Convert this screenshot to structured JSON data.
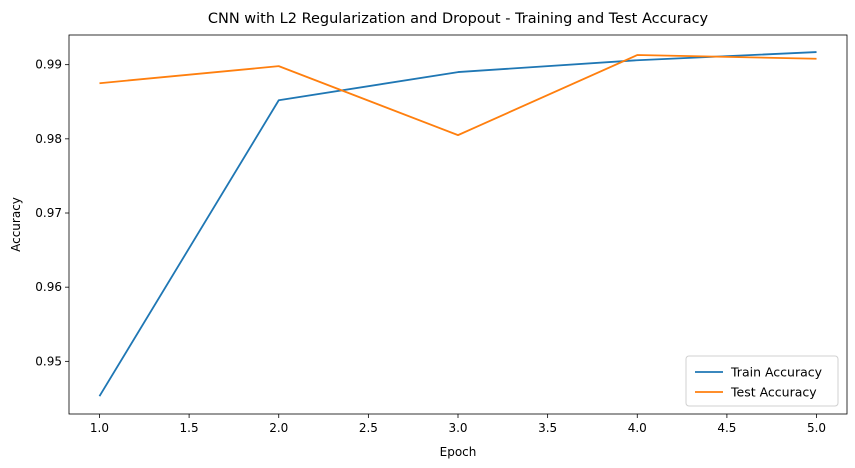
{
  "chart_data": {
    "type": "line",
    "title": "CNN with L2 Regularization and Dropout - Training and Test Accuracy",
    "xlabel": "Epoch",
    "ylabel": "Accuracy",
    "x": [
      1,
      2,
      3,
      4,
      5
    ],
    "xlim": [
      0.83,
      5.17
    ],
    "ylim": [
      0.9429,
      0.994
    ],
    "xticks": [
      1.0,
      1.5,
      2.0,
      2.5,
      3.0,
      3.5,
      4.0,
      4.5,
      5.0
    ],
    "xtick_labels": [
      "1.0",
      "1.5",
      "2.0",
      "2.5",
      "3.0",
      "3.5",
      "4.0",
      "4.5",
      "5.0"
    ],
    "yticks": [
      0.95,
      0.96,
      0.97,
      0.98,
      0.99
    ],
    "ytick_labels": [
      "0.95",
      "0.96",
      "0.97",
      "0.98",
      "0.99"
    ],
    "grid": false,
    "legend_position": "lower-right",
    "series": [
      {
        "name": "Train Accuracy",
        "color": "#1f77b4",
        "values": [
          0.9453,
          0.9852,
          0.989,
          0.9906,
          0.9917
        ]
      },
      {
        "name": "Test Accuracy",
        "color": "#ff7f0e",
        "values": [
          0.9875,
          0.9898,
          0.9805,
          0.9913,
          0.9908
        ]
      }
    ]
  }
}
